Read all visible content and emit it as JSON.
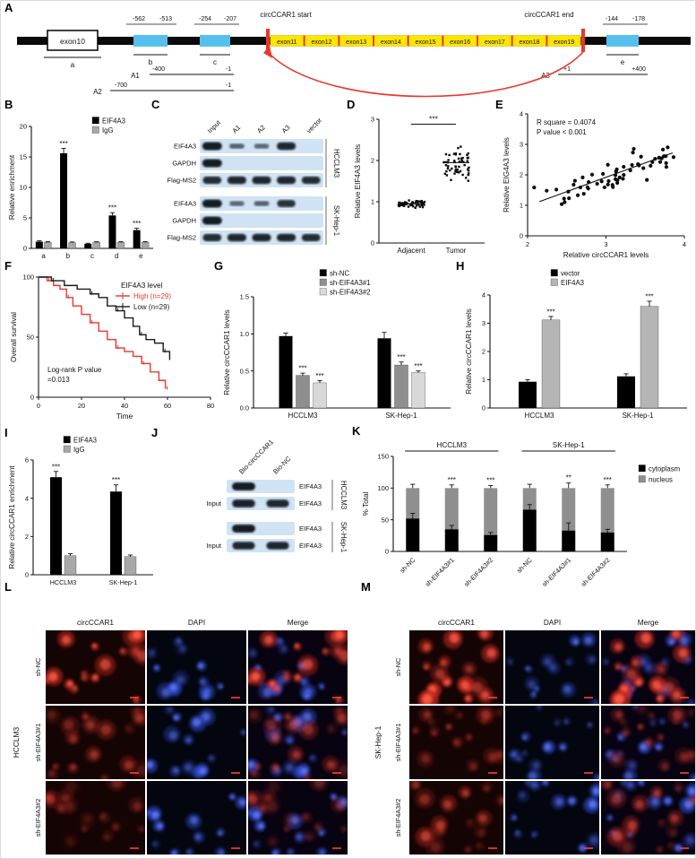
{
  "panel_labels": {
    "A": "A",
    "B": "B",
    "C": "C",
    "D": "D",
    "E": "E",
    "F": "F",
    "G": "G",
    "I": "I",
    "H": "H",
    "J": "J",
    "K": "K",
    "L": "L",
    "M": "M"
  },
  "colors": {
    "accent_red": "#e8372c",
    "exon_yellow": "#ffe600",
    "probe_blue": "#55c0ee",
    "blot_bg": "#cfe3f4",
    "series_black": "#000000",
    "series_gray": "#8f8f8f",
    "series_lightgray": "#d8d8d8"
  },
  "panelA": {
    "exon10": "exon10",
    "region_a": "a",
    "region_b": "b",
    "region_c": "c",
    "region_e": "e",
    "b_range": [
      "-562",
      "-513"
    ],
    "c_range": [
      "-254",
      "-207"
    ],
    "e_range": [
      "-144",
      "-178"
    ],
    "circ_start": "circCCAR1 start",
    "circ_end": "circCCAR1 end",
    "exons": [
      "exon11",
      "exon12",
      "exon13",
      "exon14",
      "exon15",
      "exon16",
      "exon17",
      "exon18",
      "exon19"
    ],
    "amplicons": [
      {
        "name": "A1",
        "from": "-400",
        "to": "-1"
      },
      {
        "name": "A2",
        "from": "-700",
        "to": "-1"
      },
      {
        "name": "A3",
        "from": "+1",
        "to": "+400"
      }
    ]
  },
  "chart_data": [
    {
      "id": "B",
      "type": "bar",
      "panel": "B",
      "categories": [
        "a",
        "b",
        "c",
        "d",
        "e"
      ],
      "series": [
        {
          "name": "EIF4A3",
          "color": "#000000",
          "values": [
            1.1,
            15.6,
            0.75,
            5.4,
            3.0
          ],
          "err": [
            0.15,
            0.8,
            0.1,
            0.45,
            0.3
          ],
          "sig": [
            "",
            "***",
            "",
            "***",
            "***"
          ]
        },
        {
          "name": "IgG",
          "color": "#a8a8a8",
          "values": [
            1.0,
            0.95,
            1.0,
            1.0,
            1.0
          ],
          "err": [
            0.1,
            0.1,
            0.1,
            0.1,
            0.1
          ]
        }
      ],
      "ylabel": "Relative enrichment",
      "ylim": [
        0,
        20
      ],
      "yticks": [
        0,
        5,
        10,
        15,
        20
      ],
      "legend_pos": "top-right"
    },
    {
      "id": "D",
      "type": "dot",
      "panel": "D",
      "groups": [
        "Adjacent",
        "Tumor"
      ],
      "clusters": [
        {
          "mean": 0.95,
          "sd": 0.07,
          "n": 55
        },
        {
          "mean": 1.95,
          "sd": 0.3,
          "n": 55
        }
      ],
      "ylabel": "Relative EIF4A3 levels",
      "ylim": [
        0,
        3
      ],
      "yticks": [
        0,
        1,
        2,
        3
      ],
      "sig": "***"
    },
    {
      "id": "E",
      "type": "scatter",
      "panel": "E",
      "n": 60,
      "xlabel": "Relative circCCAR1 levels",
      "ylabel": "Relative EIG4A3 levels",
      "xlim": [
        2,
        4
      ],
      "xticks": [
        2,
        3,
        4
      ],
      "ylim": [
        0,
        4
      ],
      "yticks": [
        0,
        1,
        2,
        3,
        4
      ],
      "annotation": [
        "R square = 0.4074",
        "P value < 0.001"
      ],
      "trend": {
        "x1": 2.15,
        "y1": 1.12,
        "x2": 3.85,
        "y2": 2.72
      }
    },
    {
      "id": "F",
      "type": "km",
      "panel": "F",
      "legend_title": "EIF4A3 level",
      "xlabel": "Time",
      "ylabel": "Overall survival",
      "xlim": [
        0,
        80
      ],
      "xticks": [
        0,
        20,
        40,
        60,
        80
      ],
      "ylim": [
        0,
        100
      ],
      "yticks": [
        0,
        50,
        100
      ],
      "annotation": [
        "Log-rank  P value",
        "=0.013"
      ],
      "series": [
        {
          "name": "High (n=29)",
          "color": "#e8372c",
          "steps": [
            [
              0,
              100
            ],
            [
              4,
              97
            ],
            [
              7,
              93
            ],
            [
              10,
              90
            ],
            [
              13,
              83
            ],
            [
              16,
              76
            ],
            [
              20,
              69
            ],
            [
              24,
              62
            ],
            [
              28,
              55
            ],
            [
              32,
              48
            ],
            [
              36,
              41
            ],
            [
              40,
              38
            ],
            [
              44,
              34
            ],
            [
              48,
              28
            ],
            [
              52,
              21
            ],
            [
              56,
              14
            ],
            [
              59,
              7
            ]
          ]
        },
        {
          "name": "Low (n=29)",
          "color": "#1a1a1a",
          "steps": [
            [
              0,
              100
            ],
            [
              6,
              97
            ],
            [
              12,
              93
            ],
            [
              18,
              90
            ],
            [
              24,
              86
            ],
            [
              28,
              83
            ],
            [
              32,
              76
            ],
            [
              36,
              72
            ],
            [
              40,
              66
            ],
            [
              44,
              59
            ],
            [
              47,
              52
            ],
            [
              50,
              48
            ],
            [
              54,
              45
            ],
            [
              58,
              38
            ],
            [
              61,
              31
            ]
          ]
        }
      ]
    },
    {
      "id": "G",
      "type": "bar",
      "panel": "G",
      "categories": [
        "HCCLM3",
        "SK-Hep-1"
      ],
      "series": [
        {
          "name": "sh-NC",
          "color": "#000000",
          "values": [
            0.97,
            0.94
          ],
          "err": [
            0.04,
            0.08
          ]
        },
        {
          "name": "sh-EIF4A3#1",
          "color": "#8f8f8f",
          "values": [
            0.44,
            0.58
          ],
          "err": [
            0.03,
            0.04
          ],
          "sig": [
            "***",
            "***"
          ]
        },
        {
          "name": "sh-EIF4A3#2",
          "color": "#d8d8d8",
          "values": [
            0.34,
            0.48
          ],
          "err": [
            0.03,
            0.02
          ],
          "sig": [
            "***",
            "***"
          ]
        }
      ],
      "ylabel": "Relative circCCAR1 levels",
      "ylim": [
        0,
        1.5
      ],
      "yticks": [
        0,
        0.5,
        1,
        1.5
      ],
      "ytick_labels": [
        "0.0",
        "0.5",
        "1.0",
        "1.5"
      ],
      "legend_pos": "top"
    },
    {
      "id": "H",
      "type": "bar",
      "panel": "H",
      "categories": [
        "HCCLM3",
        "SK-Hep-1"
      ],
      "series": [
        {
          "name": "vector",
          "color": "#000000",
          "values": [
            0.93,
            1.12
          ],
          "err": [
            0.07,
            0.09
          ]
        },
        {
          "name": "EIF4A3",
          "color": "#b5b5b5",
          "values": [
            3.12,
            3.6
          ],
          "err": [
            0.12,
            0.18
          ],
          "sig": [
            "***",
            "***"
          ]
        }
      ],
      "ylabel": "Relative circCCAR1 levels",
      "ylim": [
        0,
        4
      ],
      "yticks": [
        0,
        1,
        2,
        3,
        4
      ],
      "legend_pos": "top"
    },
    {
      "id": "I",
      "type": "bar",
      "panel": "I",
      "categories": [
        "HCCLM3",
        "SK-Hep-1"
      ],
      "series": [
        {
          "name": "EIF4A3",
          "color": "#000000",
          "values": [
            5.1,
            4.35
          ],
          "err": [
            0.3,
            0.35
          ],
          "sig": [
            "***",
            "***"
          ]
        },
        {
          "name": "IgG",
          "color": "#a8a8a8",
          "values": [
            1.0,
            0.95
          ],
          "err": [
            0.1,
            0.08
          ]
        }
      ],
      "ylabel": "Relative circCCAR1 enrichment",
      "ylim": [
        0,
        6
      ],
      "yticks": [
        0,
        2,
        4,
        6
      ],
      "legend_pos": "top"
    },
    {
      "id": "K",
      "type": "stacked",
      "panel": "K",
      "group_headers": [
        "HCCLM3",
        "SK-Hep-1"
      ],
      "categories": [
        "sh-NC",
        "sh-EIF4A3#1",
        "sh-EIF4A3#2",
        "sh-NC",
        "sh-EIF4A3#1",
        "sh-EIF4A3#2"
      ],
      "series": [
        {
          "name": "cytoplasm",
          "color": "#000000",
          "values": [
            52,
            35,
            26,
            66,
            33,
            30
          ],
          "err": [
            8,
            6,
            4,
            8,
            12,
            5
          ]
        },
        {
          "name": "nucleus",
          "color": "#8f8f8f",
          "values": [
            48,
            65,
            74,
            34,
            67,
            70
          ],
          "err": [
            6,
            5,
            4,
            6,
            8,
            5
          ]
        }
      ],
      "sig": [
        "",
        "***",
        "***",
        "",
        "**",
        "***"
      ],
      "ylabel": "% Total",
      "ylim": [
        0,
        150
      ],
      "yticks": [
        0,
        50,
        100,
        150
      ],
      "legend_pos": "right"
    }
  ],
  "panelC": {
    "lanes": [
      "Input",
      "A1",
      "A2",
      "A3",
      "vector"
    ],
    "cell_lines": [
      "HCCLM3",
      "SK-Hep-1"
    ],
    "rows": [
      {
        "label": "EIF4A3",
        "bands": [
          1,
          0.35,
          0.3,
          0.9,
          0
        ]
      },
      {
        "label": "GAPDH",
        "bands": [
          1,
          0,
          0,
          0,
          0
        ]
      },
      {
        "label": "Flag-MS2",
        "bands": [
          0.85,
          0.9,
          0.9,
          0.9,
          0.85
        ]
      },
      {
        "label": "EIF4A3",
        "bands": [
          1,
          0.3,
          0.35,
          0.8,
          0
        ]
      },
      {
        "label": "GAPDH",
        "bands": [
          1,
          0,
          0,
          0,
          0
        ]
      },
      {
        "label": "Flag-MS2",
        "bands": [
          0.85,
          0.9,
          0.9,
          0.9,
          0.85
        ]
      }
    ]
  },
  "panelJ": {
    "lanes": [
      "Bio-circCCAR1",
      "Bio-NC"
    ],
    "cell_lines": [
      "HCCLM3",
      "SK-Hep-1"
    ],
    "input_label": "Input",
    "rows": [
      {
        "label": "EIF4A3",
        "input": false,
        "bands": [
          1,
          0
        ]
      },
      {
        "label": "EIF4A3",
        "input": true,
        "bands": [
          0.95,
          0.9
        ]
      },
      {
        "label": "EIF4A3",
        "input": false,
        "bands": [
          1,
          0
        ]
      },
      {
        "label": "EIF4A3",
        "input": true,
        "bands": [
          0.9,
          0.9
        ]
      }
    ]
  },
  "panelL": {
    "cell_line": "HCCLM3",
    "columns": [
      "circCCAR1",
      "DAPI",
      "Merge"
    ],
    "rows": [
      "sh-NC",
      "sh-EIF4A3#1",
      "sh-EIF4A3#2"
    ],
    "red_intensity": [
      1.0,
      0.45,
      0.35
    ]
  },
  "panelM": {
    "cell_line": "SK-Hep-1",
    "columns": [
      "circCCAR1",
      "DAPI",
      "Merge"
    ],
    "rows": [
      "sh-NC",
      "sh-EIF4A3#1",
      "sh-EIF4A3#2"
    ],
    "red_intensity": [
      1.1,
      0.45,
      0.55
    ]
  }
}
